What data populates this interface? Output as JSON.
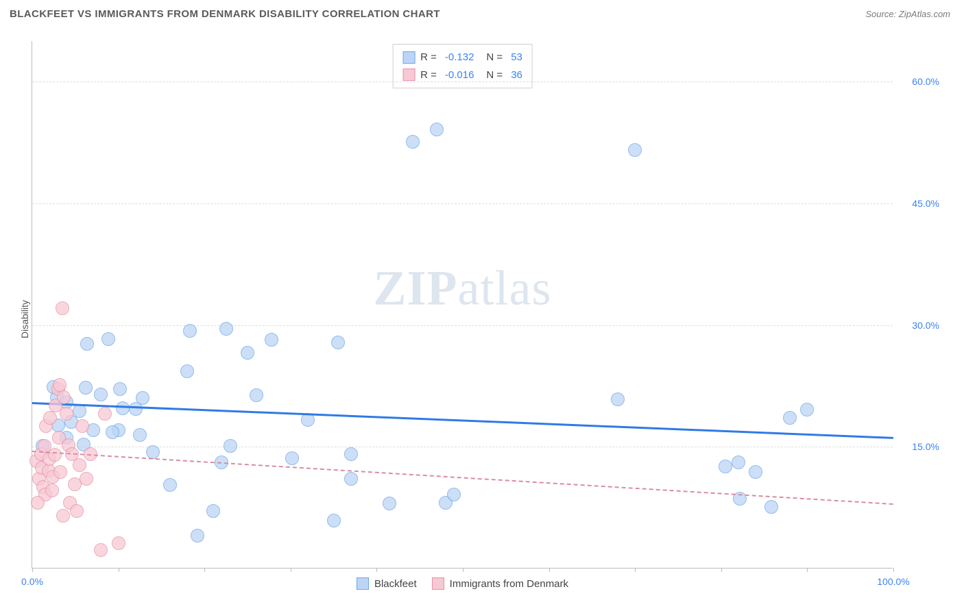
{
  "header": {
    "title": "BLACKFEET VS IMMIGRANTS FROM DENMARK DISABILITY CORRELATION CHART",
    "source": "Source: ZipAtlas.com"
  },
  "chart": {
    "type": "scatter",
    "ylabel": "Disability",
    "watermark": "ZIPatlas",
    "background_color": "#ffffff",
    "grid_color": "#dcdcdc",
    "axis_color": "#bcbcbc",
    "tick_label_color": "#3b82f6",
    "xlim": [
      0,
      100
    ],
    "ylim": [
      0,
      65
    ],
    "x_ticks": [
      0,
      10,
      20,
      30,
      40,
      50,
      60,
      70,
      80,
      90,
      100
    ],
    "x_tick_labels": {
      "0": "0.0%",
      "100": "100.0%"
    },
    "y_ticks": [
      15,
      30,
      45,
      60
    ],
    "y_tick_labels": {
      "15": "15.0%",
      "30": "30.0%",
      "45": "45.0%",
      "60": "60.0%"
    },
    "series": [
      {
        "name": "Blackfeet",
        "fill": "#bcd5f5",
        "stroke": "#6ea6e8",
        "marker_radius": 10,
        "trend": {
          "y_at_x0": 20.5,
          "y_at_x100": 16.2,
          "color": "#2f7ae5",
          "style": "solid",
          "width": 3
        },
        "points": [
          [
            1.2,
            15.0
          ],
          [
            2.9,
            21.0
          ],
          [
            2.5,
            22.3
          ],
          [
            3.0,
            17.6
          ],
          [
            4.5,
            18.0
          ],
          [
            4.0,
            20.4
          ],
          [
            5.5,
            19.3
          ],
          [
            6.2,
            22.2
          ],
          [
            7.1,
            17.0
          ],
          [
            8.0,
            21.4
          ],
          [
            8.8,
            28.2
          ],
          [
            6.4,
            27.6
          ],
          [
            10.5,
            19.7
          ],
          [
            10.0,
            17.0
          ],
          [
            12.0,
            19.6
          ],
          [
            12.5,
            16.4
          ],
          [
            14.0,
            14.3
          ],
          [
            18.3,
            29.2
          ],
          [
            18.0,
            24.2
          ],
          [
            19.2,
            4.0
          ],
          [
            21.0,
            7.0
          ],
          [
            22.5,
            29.5
          ],
          [
            23.0,
            15.0
          ],
          [
            22.0,
            13.0
          ],
          [
            26.0,
            21.3
          ],
          [
            27.8,
            28.1
          ],
          [
            30.2,
            13.5
          ],
          [
            32.0,
            18.2
          ],
          [
            35.5,
            27.8
          ],
          [
            37.0,
            11.0
          ],
          [
            37.0,
            14.0
          ],
          [
            41.5,
            7.9
          ],
          [
            44.2,
            52.5
          ],
          [
            48.0,
            8.0
          ],
          [
            35.0,
            5.8
          ],
          [
            47.0,
            54.0
          ],
          [
            70.0,
            51.5
          ],
          [
            68.0,
            20.8
          ],
          [
            80.5,
            12.5
          ],
          [
            82.0,
            13.0
          ],
          [
            82.2,
            8.5
          ],
          [
            84.0,
            11.8
          ],
          [
            85.8,
            7.5
          ],
          [
            88.0,
            18.5
          ],
          [
            90.0,
            19.5
          ],
          [
            4.0,
            16.0
          ],
          [
            6.0,
            15.2
          ],
          [
            9.3,
            16.7
          ],
          [
            10.2,
            22.0
          ],
          [
            12.8,
            20.9
          ],
          [
            25.0,
            26.5
          ],
          [
            16.0,
            10.2
          ],
          [
            49.0,
            9.0
          ]
        ]
      },
      {
        "name": "Immigrants from Denmark",
        "fill": "#f7c9d4",
        "stroke": "#e890a8",
        "marker_radius": 10,
        "trend": {
          "y_at_x0": 14.5,
          "y_at_x100": 8.0,
          "color": "#d98ca0",
          "style": "dashed",
          "width": 2
        },
        "points": [
          [
            0.5,
            13.2
          ],
          [
            0.8,
            11.0
          ],
          [
            1.0,
            14.0
          ],
          [
            1.1,
            12.3
          ],
          [
            1.3,
            10.0
          ],
          [
            1.4,
            15.0
          ],
          [
            1.5,
            9.0
          ],
          [
            1.6,
            17.5
          ],
          [
            1.9,
            12.0
          ],
          [
            2.0,
            13.4
          ],
          [
            2.1,
            18.5
          ],
          [
            2.3,
            9.5
          ],
          [
            2.4,
            11.2
          ],
          [
            2.6,
            13.9
          ],
          [
            2.7,
            20.0
          ],
          [
            3.0,
            22.0
          ],
          [
            3.1,
            16.0
          ],
          [
            3.2,
            22.5
          ],
          [
            3.3,
            11.8
          ],
          [
            3.6,
            6.4
          ],
          [
            3.7,
            21.0
          ],
          [
            4.0,
            19.0
          ],
          [
            4.2,
            15.1
          ],
          [
            4.4,
            8.0
          ],
          [
            4.6,
            14.0
          ],
          [
            4.9,
            10.3
          ],
          [
            5.2,
            7.0
          ],
          [
            5.5,
            12.7
          ],
          [
            5.8,
            17.5
          ],
          [
            6.3,
            11.0
          ],
          [
            6.8,
            14.0
          ],
          [
            8.0,
            2.2
          ],
          [
            8.4,
            19.0
          ],
          [
            10.0,
            3.0
          ],
          [
            3.5,
            32.0
          ],
          [
            0.6,
            8.0
          ]
        ]
      }
    ],
    "legend_top": [
      {
        "swatch": "series0",
        "r_label": "R =",
        "r": "-0.132",
        "n_label": "N =",
        "n": "53"
      },
      {
        "swatch": "series1",
        "r_label": "R =",
        "r": "-0.016",
        "n_label": "N =",
        "n": "36"
      }
    ],
    "legend_bottom": [
      {
        "swatch": "series0",
        "label": "Blackfeet"
      },
      {
        "swatch": "series1",
        "label": "Immigrants from Denmark"
      }
    ]
  }
}
